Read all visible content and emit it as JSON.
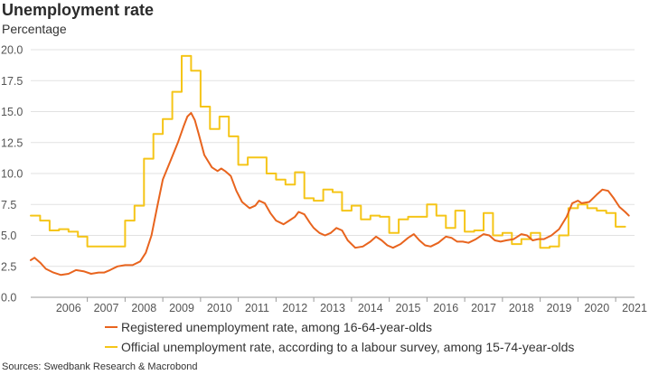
{
  "chart_data": {
    "type": "line",
    "title": "Unemployment rate",
    "subtitle": "Percentage",
    "ylim": [
      0,
      20
    ],
    "y_ticks": [
      "0.0",
      "2.5",
      "5.0",
      "7.5",
      "10.0",
      "12.5",
      "15.0",
      "17.5",
      "20.0"
    ],
    "x_range": [
      2005.5,
      2021.5
    ],
    "x_ticks": [
      "2006",
      "2007",
      "2008",
      "2009",
      "2010",
      "2011",
      "2012",
      "2013",
      "2014",
      "2015",
      "2016",
      "2017",
      "2018",
      "2019",
      "2020",
      "2021"
    ],
    "grid": true,
    "legend_position": "bottom",
    "series": [
      {
        "name": "Registered unemployment rate, among 16-64-year-olds",
        "color": "#E8641E",
        "x": [
          2005.5,
          2005.6,
          2005.75,
          2005.9,
          2006.1,
          2006.3,
          2006.5,
          2006.7,
          2006.9,
          2007.1,
          2007.3,
          2007.45,
          2007.6,
          2007.8,
          2008.0,
          2008.2,
          2008.4,
          2008.55,
          2008.7,
          2008.85,
          2009.0,
          2009.2,
          2009.4,
          2009.55,
          2009.65,
          2009.75,
          2009.85,
          2009.95,
          2010.1,
          2010.3,
          2010.45,
          2010.55,
          2010.65,
          2010.8,
          2010.95,
          2011.1,
          2011.3,
          2011.45,
          2011.55,
          2011.7,
          2011.85,
          2012.0,
          2012.2,
          2012.35,
          2012.5,
          2012.6,
          2012.75,
          2012.9,
          2013.0,
          2013.15,
          2013.3,
          2013.45,
          2013.6,
          2013.75,
          2013.9,
          2014.1,
          2014.3,
          2014.5,
          2014.65,
          2014.8,
          2014.95,
          2015.1,
          2015.3,
          2015.5,
          2015.65,
          2015.8,
          2015.95,
          2016.1,
          2016.3,
          2016.5,
          2016.65,
          2016.8,
          2016.95,
          2017.1,
          2017.3,
          2017.5,
          2017.65,
          2017.8,
          2017.95,
          2018.1,
          2018.3,
          2018.5,
          2018.65,
          2018.8,
          2018.95,
          2019.1,
          2019.3,
          2019.5,
          2019.7,
          2019.85,
          2020.0,
          2020.1,
          2020.3,
          2020.5,
          2020.65,
          2020.8,
          2020.95,
          2021.1,
          2021.25,
          2021.35
        ],
        "values": [
          3.0,
          3.2,
          2.8,
          2.3,
          2.0,
          1.8,
          1.9,
          2.2,
          2.1,
          1.9,
          2.0,
          2.0,
          2.2,
          2.5,
          2.6,
          2.6,
          2.9,
          3.6,
          5.0,
          7.3,
          9.5,
          11.0,
          12.5,
          13.8,
          14.6,
          14.9,
          14.3,
          13.2,
          11.5,
          10.5,
          10.2,
          10.4,
          10.2,
          9.8,
          8.6,
          7.7,
          7.2,
          7.4,
          7.8,
          7.6,
          6.8,
          6.2,
          5.9,
          6.2,
          6.5,
          6.9,
          6.7,
          6.0,
          5.6,
          5.2,
          5.0,
          5.2,
          5.6,
          5.4,
          4.6,
          4.0,
          4.1,
          4.5,
          4.9,
          4.6,
          4.2,
          4.0,
          4.3,
          4.8,
          5.1,
          4.6,
          4.2,
          4.1,
          4.4,
          4.9,
          4.8,
          4.5,
          4.5,
          4.4,
          4.7,
          5.1,
          5.0,
          4.6,
          4.5,
          4.6,
          4.7,
          5.1,
          5.0,
          4.6,
          4.7,
          4.7,
          5.0,
          5.5,
          6.5,
          7.6,
          7.8,
          7.6,
          7.7,
          8.3,
          8.7,
          8.6,
          8.0,
          7.3,
          6.9,
          6.6
        ]
      },
      {
        "name": "Official unemployment rate, according to a labour survey, among 15-74-year-olds",
        "color": "#F5C518",
        "x": [
          2005.5,
          2005.75,
          2005.75,
          2006.0,
          2006.0,
          2006.25,
          2006.25,
          2006.5,
          2006.5,
          2006.75,
          2006.75,
          2007.0,
          2007.0,
          2007.25,
          2007.25,
          2007.5,
          2007.5,
          2007.75,
          2007.75,
          2008.0,
          2008.0,
          2008.25,
          2008.25,
          2008.5,
          2008.5,
          2008.75,
          2008.75,
          2009.0,
          2009.0,
          2009.25,
          2009.25,
          2009.5,
          2009.5,
          2009.75,
          2009.75,
          2010.0,
          2010.0,
          2010.25,
          2010.25,
          2010.5,
          2010.5,
          2010.75,
          2010.75,
          2011.0,
          2011.0,
          2011.25,
          2011.25,
          2011.5,
          2011.5,
          2011.75,
          2011.75,
          2012.0,
          2012.0,
          2012.25,
          2012.25,
          2012.5,
          2012.5,
          2012.75,
          2012.75,
          2013.0,
          2013.0,
          2013.25,
          2013.25,
          2013.5,
          2013.5,
          2013.75,
          2013.75,
          2014.0,
          2014.0,
          2014.25,
          2014.25,
          2014.5,
          2014.5,
          2014.75,
          2014.75,
          2015.0,
          2015.0,
          2015.25,
          2015.25,
          2015.5,
          2015.5,
          2015.75,
          2015.75,
          2016.0,
          2016.0,
          2016.25,
          2016.25,
          2016.5,
          2016.5,
          2016.75,
          2016.75,
          2017.0,
          2017.0,
          2017.25,
          2017.25,
          2017.5,
          2017.5,
          2017.75,
          2017.75,
          2018.0,
          2018.0,
          2018.25,
          2018.25,
          2018.5,
          2018.5,
          2018.75,
          2018.75,
          2019.0,
          2019.0,
          2019.25,
          2019.25,
          2019.5,
          2019.5,
          2019.75,
          2019.75,
          2020.0,
          2020.0,
          2020.25,
          2020.25,
          2020.5,
          2020.5,
          2020.75,
          2020.75,
          2021.0,
          2021.0,
          2021.25
        ],
        "values": [
          6.6,
          6.6,
          6.2,
          6.2,
          5.4,
          5.4,
          5.5,
          5.5,
          5.3,
          5.3,
          4.9,
          4.9,
          4.1,
          4.1,
          4.1,
          4.1,
          4.1,
          4.1,
          4.1,
          4.1,
          6.2,
          6.2,
          7.4,
          7.4,
          11.2,
          11.2,
          13.2,
          13.2,
          14.4,
          14.4,
          16.6,
          16.6,
          19.5,
          19.5,
          18.3,
          18.3,
          15.4,
          15.4,
          13.6,
          13.6,
          14.6,
          14.6,
          13.0,
          13.0,
          10.7,
          10.7,
          11.3,
          11.3,
          11.3,
          11.3,
          10.0,
          10.0,
          9.5,
          9.5,
          9.1,
          9.1,
          10.1,
          10.1,
          8.0,
          8.0,
          7.8,
          7.8,
          8.7,
          8.7,
          8.5,
          8.5,
          7.0,
          7.0,
          7.4,
          7.4,
          6.3,
          6.3,
          6.6,
          6.6,
          6.5,
          6.5,
          5.2,
          5.2,
          6.3,
          6.3,
          6.5,
          6.5,
          6.5,
          6.5,
          7.5,
          7.5,
          6.6,
          6.6,
          5.6,
          5.6,
          7.0,
          7.0,
          5.3,
          5.3,
          5.4,
          5.4,
          6.8,
          6.8,
          5.0,
          5.0,
          5.2,
          5.2,
          4.3,
          4.3,
          4.7,
          4.7,
          5.2,
          5.2,
          4.0,
          4.0,
          4.1,
          4.1,
          5.0,
          5.0,
          7.2,
          7.2,
          7.5,
          7.5,
          7.2,
          7.2,
          7.0,
          7.0,
          6.8,
          6.8,
          5.7,
          5.7
        ]
      }
    ],
    "source": "Sources: Swedbank Research & Macrobond"
  }
}
